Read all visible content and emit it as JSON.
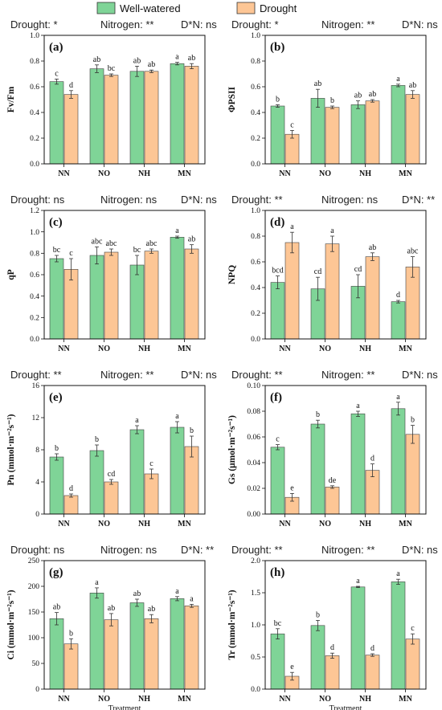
{
  "legend": {
    "items": [
      {
        "name": "Well-watered",
        "color": "#7fd497"
      },
      {
        "name": "Drought",
        "color": "#fdc695"
      }
    ]
  },
  "chart_data": [
    {
      "type": "bar",
      "panel": "(a)",
      "ylabel": "Fv/Fm",
      "xlabel": "",
      "ylim": [
        0,
        1.0
      ],
      "yticks": [
        "0.0",
        "0.2",
        "0.4",
        "0.6",
        "0.8",
        "1.0"
      ],
      "categories": [
        "NN",
        "NO",
        "NH",
        "MN"
      ],
      "series": [
        {
          "name": "Well-watered",
          "values": [
            0.64,
            0.74,
            0.72,
            0.78
          ],
          "errors": [
            0.02,
            0.03,
            0.04,
            0.01
          ],
          "letters": [
            "c",
            "ab",
            "ab",
            "a"
          ]
        },
        {
          "name": "Drought",
          "values": [
            0.54,
            0.69,
            0.72,
            0.76
          ],
          "errors": [
            0.03,
            0.01,
            0.01,
            0.02
          ],
          "letters": [
            "d",
            "bc",
            "ab",
            "ab"
          ]
        }
      ],
      "annotations": [
        "Drought: *",
        "Nitrogen: **",
        "D*N: ns"
      ]
    },
    {
      "type": "bar",
      "panel": "(b)",
      "ylabel": "ΦPSII",
      "xlabel": "",
      "ylim": [
        0,
        1.0
      ],
      "yticks": [
        "0.0",
        "0.2",
        "0.4",
        "0.6",
        "0.8",
        "1.0"
      ],
      "categories": [
        "NN",
        "NO",
        "NH",
        "MN"
      ],
      "series": [
        {
          "name": "Well-watered",
          "values": [
            0.45,
            0.51,
            0.46,
            0.61
          ],
          "errors": [
            0.01,
            0.07,
            0.03,
            0.01
          ],
          "letters": [
            "b",
            "ab",
            "ab",
            "a"
          ]
        },
        {
          "name": "Drought",
          "values": [
            0.23,
            0.44,
            0.49,
            0.54
          ],
          "errors": [
            0.03,
            0.01,
            0.01,
            0.03
          ],
          "letters": [
            "c",
            "b",
            "ab",
            "ab"
          ]
        }
      ],
      "annotations": [
        "Drought: *",
        "Nitrogen: **",
        "D*N: ns"
      ]
    },
    {
      "type": "bar",
      "panel": "(c)",
      "ylabel": "qP",
      "xlabel": "",
      "ylim": [
        0,
        1.2
      ],
      "yticks": [
        "0.0",
        "0.2",
        "0.4",
        "0.6",
        "0.8",
        "1.0",
        "1.2"
      ],
      "categories": [
        "NN",
        "NO",
        "NH",
        "MN"
      ],
      "series": [
        {
          "name": "Well-watered",
          "values": [
            0.75,
            0.78,
            0.69,
            0.95
          ],
          "errors": [
            0.03,
            0.08,
            0.09,
            0.01
          ],
          "letters": [
            "bc",
            "abc",
            "bc",
            "a"
          ]
        },
        {
          "name": "Drought",
          "values": [
            0.65,
            0.81,
            0.82,
            0.84
          ],
          "errors": [
            0.1,
            0.03,
            0.02,
            0.04
          ],
          "letters": [
            "c",
            "abc",
            "abc",
            "ab"
          ]
        }
      ],
      "annotations": [
        "Drought: ns",
        "Nitrogen: ns",
        "D*N: ns"
      ]
    },
    {
      "type": "bar",
      "panel": "(d)",
      "ylabel": "NPQ",
      "xlabel": "",
      "ylim": [
        0,
        1.0
      ],
      "yticks": [
        "0.0",
        "0.2",
        "0.4",
        "0.6",
        "0.8",
        "1.0"
      ],
      "categories": [
        "NN",
        "NO",
        "NH",
        "MN"
      ],
      "series": [
        {
          "name": "Well-watered",
          "values": [
            0.44,
            0.39,
            0.41,
            0.29
          ],
          "errors": [
            0.05,
            0.09,
            0.09,
            0.01
          ],
          "letters": [
            "bcd",
            "cd",
            "cd",
            "d"
          ]
        },
        {
          "name": "Drought",
          "values": [
            0.75,
            0.74,
            0.64,
            0.56
          ],
          "errors": [
            0.08,
            0.06,
            0.03,
            0.08
          ],
          "letters": [
            "a",
            "a",
            "ab",
            "abc"
          ]
        }
      ],
      "annotations": [
        "Drought: **",
        "Nitrogen: ns",
        "D*N: **"
      ]
    },
    {
      "type": "bar",
      "panel": "(e)",
      "ylabel": "Pn (mmol·m⁻²s⁻¹)",
      "xlabel": "",
      "ylim": [
        0,
        16
      ],
      "yticks": [
        "0",
        "4",
        "8",
        "12",
        "16"
      ],
      "categories": [
        "NN",
        "NO",
        "NH",
        "MN"
      ],
      "series": [
        {
          "name": "Well-watered",
          "values": [
            7.1,
            7.9,
            10.5,
            10.8
          ],
          "errors": [
            0.4,
            0.7,
            0.5,
            0.7
          ],
          "letters": [
            "b",
            "b",
            "a",
            "a"
          ]
        },
        {
          "name": "Drought",
          "values": [
            2.3,
            4.0,
            5.0,
            8.4
          ],
          "errors": [
            0.2,
            0.3,
            0.6,
            1.3
          ],
          "letters": [
            "d",
            "cd",
            "c",
            "b"
          ]
        }
      ],
      "annotations": [
        "Drought: **",
        "Nitrogen: **",
        "D*N: ns"
      ]
    },
    {
      "type": "bar",
      "panel": "(f)",
      "ylabel": "Gs (μmol·m⁻²s⁻¹)",
      "xlabel": "",
      "ylim": [
        0,
        0.1
      ],
      "yticks": [
        "0.00",
        "0.02",
        "0.04",
        "0.06",
        "0.08",
        "0.10"
      ],
      "categories": [
        "NN",
        "NO",
        "NH",
        "MN"
      ],
      "series": [
        {
          "name": "Well-watered",
          "values": [
            0.052,
            0.07,
            0.078,
            0.082
          ],
          "errors": [
            0.002,
            0.003,
            0.002,
            0.005
          ],
          "letters": [
            "c",
            "b",
            "a",
            "a"
          ]
        },
        {
          "name": "Drought",
          "values": [
            0.013,
            0.021,
            0.034,
            0.062
          ],
          "errors": [
            0.003,
            0.001,
            0.005,
            0.007
          ],
          "letters": [
            "e",
            "de",
            "d",
            "b"
          ]
        }
      ],
      "annotations": [
        "Drought: **",
        "Nitrogen: **",
        "D*N: ns"
      ]
    },
    {
      "type": "bar",
      "panel": "(g)",
      "ylabel": "Ci (mmol·m⁻²s⁻¹)",
      "xlabel": "Treatment",
      "ylim": [
        0,
        250
      ],
      "yticks": [
        "0",
        "50",
        "100",
        "150",
        "200",
        "250"
      ],
      "categories": [
        "NN",
        "NO",
        "NH",
        "MN"
      ],
      "series": [
        {
          "name": "Well-watered",
          "values": [
            137,
            187,
            168,
            176
          ],
          "errors": [
            12,
            10,
            7,
            4
          ],
          "letters": [
            "ab",
            "a",
            "ab",
            "a"
          ]
        },
        {
          "name": "Drought",
          "values": [
            88,
            135,
            137,
            162
          ],
          "errors": [
            10,
            12,
            8,
            3
          ],
          "letters": [
            "b",
            "ab",
            "ab",
            "a"
          ]
        }
      ],
      "annotations": [
        "Drought: ns",
        "Nitrogen: ns",
        "D*N: **"
      ]
    },
    {
      "type": "bar",
      "panel": "(h)",
      "ylabel": "Tr (mmol·m⁻²s⁻¹)",
      "xlabel": "Treatment",
      "ylim": [
        0,
        2.0
      ],
      "yticks": [
        "0.0",
        "0.5",
        "1.0",
        "1.5",
        "2.0"
      ],
      "categories": [
        "NN",
        "NO",
        "NH",
        "MN"
      ],
      "series": [
        {
          "name": "Well-watered",
          "values": [
            0.86,
            0.99,
            1.59,
            1.67
          ],
          "errors": [
            0.08,
            0.08,
            0.01,
            0.04
          ],
          "letters": [
            "bc",
            "b",
            "a",
            "a"
          ]
        },
        {
          "name": "Drought",
          "values": [
            0.2,
            0.52,
            0.53,
            0.78
          ],
          "errors": [
            0.06,
            0.04,
            0.02,
            0.08
          ],
          "letters": [
            "e",
            "d",
            "d",
            "c"
          ]
        }
      ],
      "annotations": [
        "Drought: **",
        "Nitrogen: **",
        "D*N: ns"
      ]
    }
  ]
}
